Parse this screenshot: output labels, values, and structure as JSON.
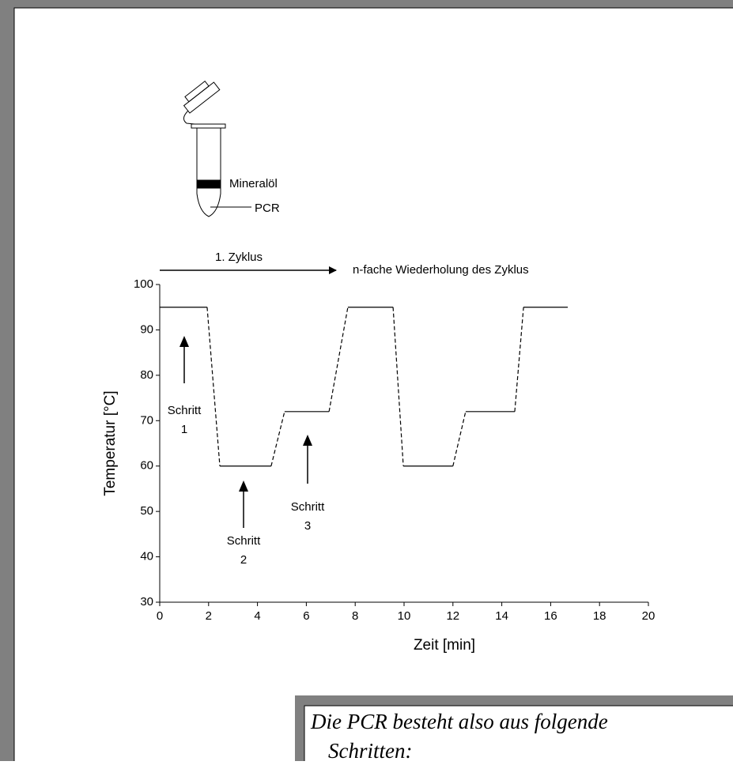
{
  "chart_data": {
    "type": "line",
    "xlabel": "Zeit [min]",
    "ylabel": "Temperatur [°C]",
    "series": [
      {
        "style": "solid",
        "color": "#000000",
        "x": [
          0,
          1.94,
          null,
          2.46,
          4.56,
          null,
          5.11,
          6.93,
          null,
          7.7,
          9.55,
          null,
          9.97,
          12.0,
          null,
          12.52,
          14.53,
          null,
          14.89,
          16.7
        ],
        "values": [
          95,
          95,
          null,
          60,
          60,
          null,
          72,
          72,
          null,
          95,
          95,
          null,
          60,
          60,
          null,
          72,
          72,
          null,
          95,
          95
        ]
      },
      {
        "style": "dashed",
        "color": "#000000",
        "x": [
          1.94,
          2.46,
          null,
          4.56,
          5.11,
          null,
          6.93,
          7.7,
          null,
          9.55,
          9.97,
          null,
          12.0,
          12.52,
          null,
          14.53,
          14.89
        ],
        "values": [
          95,
          60,
          null,
          60,
          72,
          null,
          72,
          95,
          null,
          95,
          60,
          null,
          60,
          72,
          null,
          72,
          95
        ]
      }
    ],
    "xlim": [
      0,
      20
    ],
    "xticks": [
      0,
      2,
      4,
      6,
      8,
      10,
      12,
      14,
      16,
      18,
      20
    ],
    "ylim": [
      30,
      100
    ],
    "yticks": [
      30,
      40,
      50,
      60,
      70,
      80,
      90,
      100
    ],
    "cycle_label": "1. Zyklus",
    "repeat_label": "n-fache Wiederholung des Zyklus",
    "steps": [
      {
        "label": "Schritt",
        "number": "1"
      },
      {
        "label": "Schritt",
        "number": "2"
      },
      {
        "label": "Schritt",
        "number": "3"
      }
    ]
  },
  "tube_labels": [
    "Mineralöl",
    "PCR"
  ],
  "text_box": {
    "lines": [
      "Die PCR besteht also aus folgende",
      "Schritten:"
    ]
  }
}
